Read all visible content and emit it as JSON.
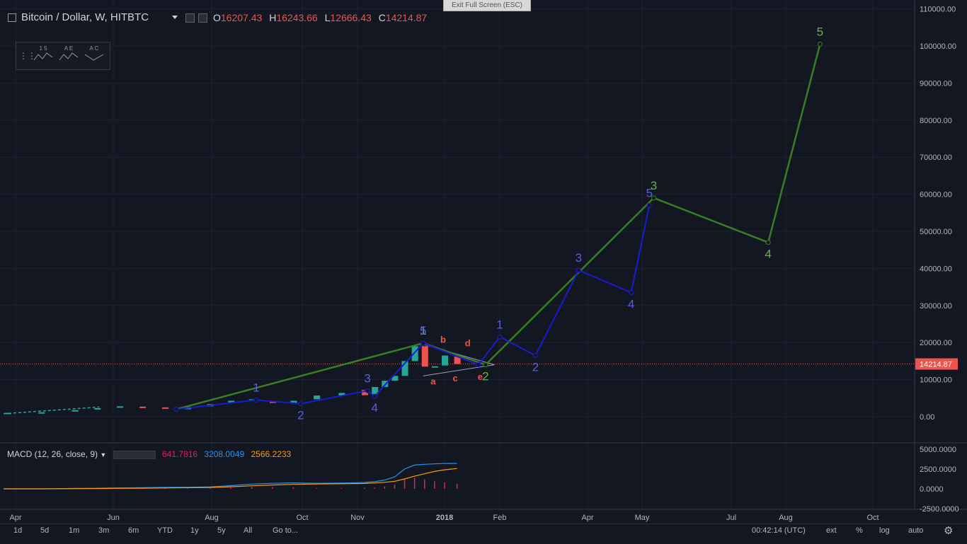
{
  "header": {
    "symbol_title": "Bitcoin / Dollar, W, HITBTC",
    "ohlc": {
      "o_label": "O",
      "o": "16207.43",
      "h_label": "H",
      "h": "16243.66",
      "l_label": "L",
      "l": "12666.43",
      "c_label": "C",
      "c": "14214.87"
    }
  },
  "exit_fullscreen": "Exit Full Screen (ESC)",
  "drawing_tools": [
    {
      "name": "impulse-wave-tool",
      "label": "1  5"
    },
    {
      "name": "triangle-wave-tool",
      "label": "A  E"
    },
    {
      "name": "correction-wave-tool",
      "label": "A  C"
    }
  ],
  "price_axis_ticks": [
    "110000.00",
    "100000.00",
    "90000.00",
    "80000.00",
    "70000.00",
    "60000.00",
    "50000.00",
    "40000.00",
    "30000.00",
    "20000.00",
    "10000.00",
    "0.00"
  ],
  "last_price_label": "14214.87",
  "macd": {
    "title": "MACD (12, 26, close, 9)",
    "values": [
      "641.7816",
      "3208.0049",
      "2566.2233"
    ],
    "value_colors": [
      "#e91e63",
      "#2196f3",
      "#ff9800"
    ],
    "axis_ticks": [
      "5000.0000",
      "2500.0000",
      "0.0000",
      "-2500.0000"
    ]
  },
  "time_axis_ticks": [
    "Apr",
    "Jun",
    "Aug",
    "Oct",
    "Nov",
    "2018",
    "Feb",
    "Apr",
    "May",
    "Jul",
    "Aug",
    "Oct"
  ],
  "bottom_toolbar": {
    "ranges": [
      "1d",
      "5d",
      "1m",
      "3m",
      "6m",
      "YTD",
      "1y",
      "5y",
      "All"
    ],
    "goto": "Go to...",
    "clock": "00:42:14 (UTC)",
    "options": [
      "ext",
      "%",
      "log",
      "auto"
    ]
  },
  "colors": {
    "background": "#131722",
    "up_candle": "#26a69a",
    "down_candle": "#ef5350",
    "green_wave": "#3b7d23",
    "blue_wave": "#1c1ccf",
    "green_label": "#6ab04c",
    "blue_label": "#5a5ce8",
    "red_label": "#ef5350"
  },
  "chart_data": {
    "type": "line",
    "yrange": [
      -3000,
      110000
    ],
    "last_price": 14214.87,
    "candles": [
      {
        "t": "2017-03-27",
        "o": 1000,
        "c": 1050
      },
      {
        "t": "2017-04-17",
        "o": 1100,
        "c": 1200
      },
      {
        "t": "2017-05-08",
        "o": 1500,
        "c": 1750
      },
      {
        "t": "2017-05-22",
        "o": 2000,
        "c": 2300
      },
      {
        "t": "2017-06-05",
        "o": 2500,
        "c": 2800
      },
      {
        "t": "2017-06-19",
        "o": 2700,
        "c": 2500
      },
      {
        "t": "2017-07-03",
        "o": 2500,
        "c": 2300
      },
      {
        "t": "2017-07-17",
        "o": 2000,
        "c": 2700
      },
      {
        "t": "2017-07-31",
        "o": 2800,
        "c": 3400
      },
      {
        "t": "2017-08-14",
        "o": 3800,
        "c": 4300
      },
      {
        "t": "2017-08-28",
        "o": 4400,
        "c": 4700
      },
      {
        "t": "2017-09-11",
        "o": 4200,
        "c": 3700
      },
      {
        "t": "2017-09-25",
        "o": 3700,
        "c": 4300
      },
      {
        "t": "2017-10-09",
        "o": 4700,
        "c": 5700
      },
      {
        "t": "2017-10-23",
        "o": 5700,
        "c": 6400
      },
      {
        "t": "2017-11-06",
        "o": 7200,
        "c": 5800
      },
      {
        "t": "2017-11-13",
        "o": 6000,
        "c": 8000
      },
      {
        "t": "2017-11-20",
        "o": 8000,
        "c": 9700
      },
      {
        "t": "2017-11-27",
        "o": 9700,
        "c": 11000
      },
      {
        "t": "2017-12-04",
        "o": 11000,
        "c": 15000
      },
      {
        "t": "2017-12-11",
        "o": 15000,
        "c": 19000
      },
      {
        "t": "2017-12-18",
        "o": 19000,
        "c": 13500
      },
      {
        "t": "2017-12-25",
        "o": 13500,
        "c": 13600
      },
      {
        "t": "2018-01-01",
        "o": 13800,
        "c": 16500
      },
      {
        "t": "2018-01-08",
        "o": 16200,
        "c": 14214
      }
    ],
    "series": [
      {
        "name": "",
        "color": "#3b7d23",
        "points": [
          {
            "x": "2017-07-10",
            "y": 2000,
            "label": ""
          },
          {
            "x": "2017-12-17",
            "y": 19800,
            "label": "1"
          },
          {
            "x": "2018-01-24",
            "y": 14000,
            "label": "2"
          },
          {
            "x": "2018-05-09",
            "y": 59000,
            "label": "3"
          },
          {
            "x": "2018-07-22",
            "y": 47000,
            "label": "4"
          },
          {
            "x": "2018-08-25",
            "y": 100500,
            "label": "5"
          }
        ]
      },
      {
        "name": "",
        "color": "#1c1ccf",
        "points": [
          {
            "x": "2017-07-10",
            "y": 2000,
            "label": ""
          },
          {
            "x": "2017-08-31",
            "y": 4500,
            "label": "1"
          },
          {
            "x": "2017-09-30",
            "y": 3500,
            "label": "2"
          },
          {
            "x": "2017-11-08",
            "y": 7000,
            "label": "3"
          },
          {
            "x": "2017-11-13",
            "y": 5500,
            "label": "4"
          },
          {
            "x": "2017-12-17",
            "y": 19800,
            "label": "5"
          },
          {
            "x": "2018-01-20",
            "y": 14000,
            "label": ""
          },
          {
            "x": "2018-02-01",
            "y": 21500,
            "label": "1"
          },
          {
            "x": "2018-02-25",
            "y": 16500,
            "label": "2"
          },
          {
            "x": "2018-03-26",
            "y": 39500,
            "label": "3"
          },
          {
            "x": "2018-04-25",
            "y": 33500,
            "label": "4"
          },
          {
            "x": "2018-05-06",
            "y": 57000,
            "label": "5"
          }
        ]
      }
    ],
    "triangle_labels": [
      {
        "label": "a",
        "x": "2017-12-24",
        "y": 8700
      },
      {
        "label": "b",
        "x": "2017-12-31",
        "y": 19900
      },
      {
        "label": "c",
        "x": "2018-01-07",
        "y": 9500
      },
      {
        "label": "d",
        "x": "2018-01-14",
        "y": 19000
      },
      {
        "label": "e",
        "x": "2018-01-21",
        "y": 9900
      }
    ],
    "macd_series": {
      "macd": [
        0,
        0,
        50,
        80,
        120,
        150,
        180,
        200,
        250,
        400,
        600,
        700,
        750,
        700,
        720,
        800,
        900,
        1100,
        1500,
        2500,
        3000,
        3100,
        3150,
        3200,
        3208
      ],
      "signal": [
        0,
        0,
        20,
        40,
        60,
        80,
        110,
        140,
        170,
        260,
        380,
        480,
        560,
        610,
        640,
        680,
        740,
        820,
        950,
        1250,
        1600,
        1900,
        2200,
        2400,
        2566
      ],
      "histogram": [
        0,
        0,
        30,
        40,
        60,
        70,
        70,
        60,
        80,
        140,
        220,
        220,
        190,
        90,
        80,
        120,
        160,
        280,
        550,
        1250,
        1400,
        1200,
        950,
        800,
        642
      ]
    }
  }
}
